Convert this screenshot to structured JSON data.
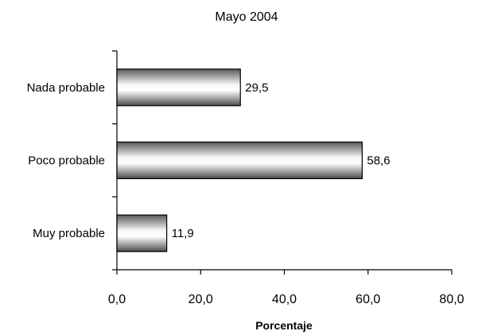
{
  "chart_data": {
    "type": "bar",
    "orientation": "horizontal",
    "title": "Mayo 2004",
    "xlabel": "Porcentaje",
    "ylabel": "",
    "categories": [
      "Nada probable",
      "Poco probable",
      "Muy probable"
    ],
    "values": [
      29.5,
      58.6,
      11.9
    ],
    "value_labels": [
      "29,5",
      "58,6",
      "11,9"
    ],
    "xlim": [
      0,
      80
    ],
    "xticks": [
      0,
      20,
      40,
      60,
      80
    ],
    "xtick_labels": [
      "0,0",
      "20,0",
      "40,0",
      "60,0",
      "80,0"
    ],
    "grid": false,
    "legend": "none",
    "bar_fill": "gradient grey-white (cylindrical)",
    "bar_outline_color": "#000000"
  }
}
